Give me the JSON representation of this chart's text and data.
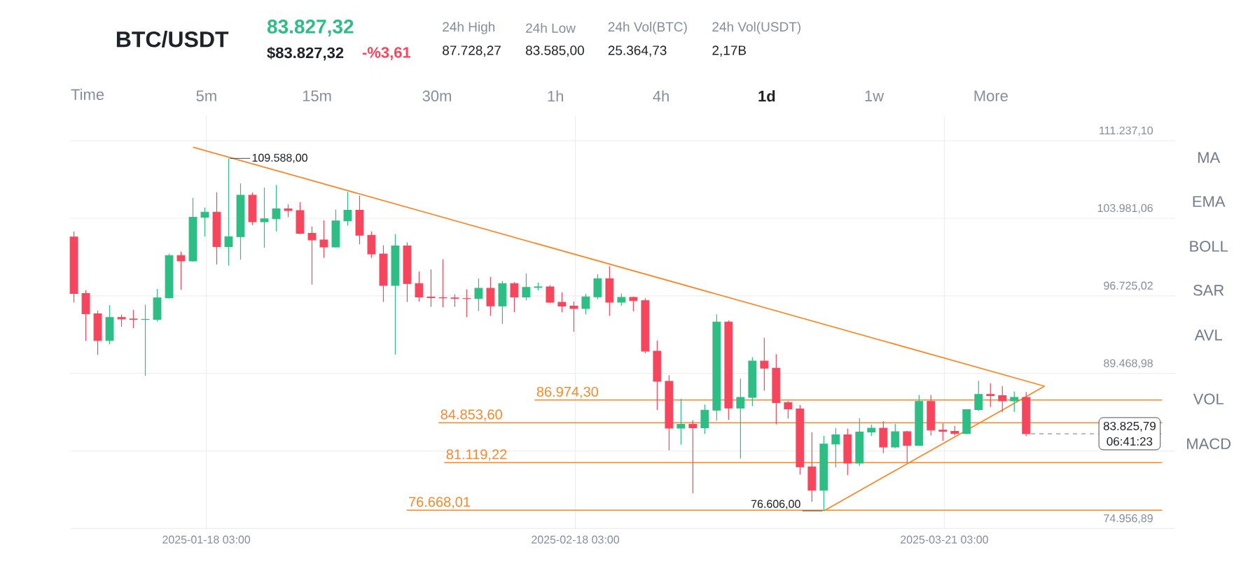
{
  "chart_data": {
    "type": "candlestick",
    "title": "BTC/USDT",
    "annotations": [
      "83.827,32",
      "$83.827,32",
      "-%3,61",
      "24h High",
      "87.728,27",
      "24h Low",
      "83.585,00",
      "24h Vol(BTC)",
      "25.364,73",
      "24h Vol(USDT)",
      "2,17B",
      "Time",
      "5m",
      "15m",
      "30m",
      "1h",
      "4h",
      "1d",
      "1w",
      "More",
      "MA",
      "EMA",
      "BOLL",
      "SAR",
      "AVL",
      "VOL",
      "MACD",
      "06:41:23",
      {
        "text": "109.588,00",
        "x": "2025-01-20",
        "y": 109588
      },
      {
        "text": "76.606,00",
        "x": "2025-03-11",
        "y": 76606
      }
    ],
    "x": [
      "2025-01-07",
      "2025-01-08",
      "2025-01-09",
      "2025-01-10",
      "2025-01-11",
      "2025-01-12",
      "2025-01-13",
      "2025-01-14",
      "2025-01-15",
      "2025-01-16",
      "2025-01-17",
      "2025-01-18",
      "2025-01-19",
      "2025-01-20",
      "2025-01-21",
      "2025-01-22",
      "2025-01-23",
      "2025-01-24",
      "2025-01-25",
      "2025-01-26",
      "2025-01-27",
      "2025-01-28",
      "2025-01-29",
      "2025-01-30",
      "2025-01-31",
      "2025-02-01",
      "2025-02-02",
      "2025-02-03",
      "2025-02-04",
      "2025-02-05",
      "2025-02-06",
      "2025-02-07",
      "2025-02-08",
      "2025-02-09",
      "2025-02-10",
      "2025-02-11",
      "2025-02-12",
      "2025-02-13",
      "2025-02-14",
      "2025-02-15",
      "2025-02-16",
      "2025-02-17",
      "2025-02-18",
      "2025-02-19",
      "2025-02-20",
      "2025-02-21",
      "2025-02-22",
      "2025-02-23",
      "2025-02-24",
      "2025-02-25",
      "2025-02-26",
      "2025-02-27",
      "2025-02-28",
      "2025-03-01",
      "2025-03-02",
      "2025-03-03",
      "2025-03-04",
      "2025-03-05",
      "2025-03-06",
      "2025-03-07",
      "2025-03-08",
      "2025-03-09",
      "2025-03-10",
      "2025-03-11",
      "2025-03-12",
      "2025-03-13",
      "2025-03-14",
      "2025-03-15",
      "2025-03-16",
      "2025-03-17",
      "2025-03-18",
      "2025-03-19",
      "2025-03-20",
      "2025-03-21",
      "2025-03-22",
      "2025-03-23",
      "2025-03-24",
      "2025-03-25",
      "2025-03-26",
      "2025-03-27",
      "2025-03-28"
    ],
    "ohlc": [
      [
        102230,
        102750,
        96100,
        96950
      ],
      [
        96950,
        97250,
        92500,
        95040
      ],
      [
        95040,
        95350,
        91200,
        92550
      ],
      [
        92550,
        95850,
        92200,
        94700
      ],
      [
        94700,
        94980,
        93830,
        94560
      ],
      [
        94560,
        95400,
        93700,
        94520
      ],
      [
        94520,
        95900,
        89250,
        94530
      ],
      [
        94530,
        97370,
        94320,
        96530
      ],
      [
        96530,
        100680,
        96470,
        100500
      ],
      [
        100500,
        100870,
        97300,
        99990
      ],
      [
        99990,
        105880,
        99940,
        104080
      ],
      [
        104080,
        104990,
        102270,
        104550
      ],
      [
        104550,
        106420,
        99650,
        101330
      ],
      [
        101330,
        109588,
        99550,
        102260
      ],
      [
        102260,
        107250,
        100120,
        106140
      ],
      [
        106140,
        106390,
        103340,
        103650
      ],
      [
        103650,
        106850,
        101220,
        103930
      ],
      [
        103930,
        107100,
        102750,
        104870
      ],
      [
        104870,
        105280,
        104100,
        104710
      ],
      [
        104710,
        105500,
        102500,
        102580
      ],
      [
        102580,
        103220,
        97780,
        101960
      ],
      [
        101960,
        103780,
        100280,
        101290
      ],
      [
        101290,
        104800,
        101260,
        103730
      ],
      [
        103730,
        106450,
        103300,
        104740
      ],
      [
        104740,
        106100,
        101540,
        102400
      ],
      [
        102400,
        102750,
        100280,
        100640
      ],
      [
        100640,
        101450,
        96150,
        97700
      ],
      [
        97700,
        102500,
        91230,
        101400
      ],
      [
        101400,
        101730,
        96150,
        97870
      ],
      [
        97870,
        99000,
        96200,
        96610
      ],
      [
        96610,
        99200,
        95700,
        96550
      ],
      [
        96550,
        100140,
        95650,
        96530
      ],
      [
        96530,
        96880,
        95700,
        96480
      ],
      [
        96480,
        97330,
        94730,
        96470
      ],
      [
        96470,
        98350,
        95300,
        97430
      ],
      [
        97430,
        98500,
        94850,
        95780
      ],
      [
        95780,
        98120,
        94090,
        97870
      ],
      [
        97870,
        98000,
        95200,
        96620
      ],
      [
        96620,
        98830,
        96300,
        97510
      ],
      [
        97510,
        97970,
        97240,
        97570
      ],
      [
        97570,
        97730,
        96050,
        96120
      ],
      [
        96120,
        97040,
        95200,
        95770
      ],
      [
        95770,
        96200,
        93380,
        95540
      ],
      [
        95540,
        96900,
        95000,
        96630
      ],
      [
        96630,
        98750,
        96400,
        98330
      ],
      [
        98330,
        99500,
        94870,
        96130
      ],
      [
        96130,
        96950,
        95800,
        96580
      ],
      [
        96580,
        96650,
        95280,
        96280
      ],
      [
        96280,
        96500,
        91350,
        91550
      ],
      [
        91550,
        92550,
        86050,
        88730
      ],
      [
        88730,
        89300,
        82260,
        84350
      ],
      [
        84350,
        87100,
        82800,
        84700
      ],
      [
        84700,
        85100,
        78260,
        84370
      ],
      [
        84370,
        86560,
        83800,
        86030
      ],
      [
        86030,
        95000,
        85050,
        94270
      ],
      [
        94270,
        94420,
        85120,
        86220
      ],
      [
        86220,
        88970,
        81500,
        87220
      ],
      [
        87220,
        90990,
        86400,
        90620
      ],
      [
        90620,
        92800,
        87850,
        89960
      ],
      [
        89960,
        91270,
        84700,
        86740
      ],
      [
        86740,
        86880,
        85250,
        86150
      ],
      [
        86150,
        86500,
        80000,
        80730
      ],
      [
        80730,
        83950,
        77460,
        78530
      ],
      [
        78530,
        83620,
        76606,
        82860
      ],
      [
        82860,
        84360,
        80670,
        83720
      ],
      [
        83720,
        84300,
        79940,
        81070
      ],
      [
        81070,
        85260,
        80800,
        83980
      ],
      [
        83980,
        84670,
        83630,
        84340
      ],
      [
        84340,
        85000,
        82000,
        82580
      ],
      [
        82580,
        84750,
        82470,
        84010
      ],
      [
        84010,
        84100,
        81130,
        82720
      ],
      [
        82720,
        87450,
        82700,
        86850
      ],
      [
        86850,
        87450,
        83650,
        84170
      ],
      [
        84170,
        84780,
        83170,
        84040
      ],
      [
        84040,
        84560,
        83650,
        83830
      ],
      [
        83830,
        86100,
        83780,
        86080
      ],
      [
        86080,
        88770,
        85940,
        87500
      ],
      [
        87500,
        88540,
        86330,
        87390
      ],
      [
        87390,
        88290,
        85850,
        86900
      ],
      [
        86900,
        87780,
        85860,
        87230
      ],
      [
        87230,
        87730,
        83585,
        83827
      ]
    ],
    "series": [
      {
        "type": "line",
        "color": "#f7892b",
        "x": [
          "2025-01-17",
          "2025-03-29T13:00"
        ],
        "values": [
          110640,
          88270
        ]
      },
      {
        "type": "line",
        "color": "#f7892b",
        "x": [
          "2025-03-11",
          "2025-03-29T13:00"
        ],
        "values": [
          76606,
          88270
        ]
      }
    ],
    "ref_lines": [
      {
        "axis": "y",
        "value": 86974.3,
        "label": "86.974,30",
        "color": "#f7892b"
      },
      {
        "axis": "y",
        "value": 84853.6,
        "label": "84.853,60",
        "color": "#f7892b"
      },
      {
        "axis": "y",
        "value": 81119.22,
        "label": "81.119,22",
        "color": "#f7892b"
      },
      {
        "axis": "y",
        "value": 76668.01,
        "label": "76.668,01",
        "color": "#f7892b"
      },
      {
        "axis": "y",
        "value": 83825.79,
        "label": "83.825,79",
        "color": "#707a8a",
        "line_style": "dashed"
      }
    ],
    "xlim": [
      "2025-01-06T17:00",
      "2025-04-09T12:00"
    ],
    "ylim": [
      74880,
      113560
    ],
    "xticks": [
      {
        "value": "2025-01-18T03:00",
        "label": "2025-01-18 03:00"
      },
      {
        "value": "2025-02-18T03:00",
        "label": "2025-02-18 03:00"
      },
      {
        "value": "2025-03-21T03:00",
        "label": "2025-03-21 03:00"
      }
    ],
    "yticks": [
      {
        "value": 74956.89,
        "label": "74.956,89"
      },
      {
        "value": 82212.94,
        "label": null
      },
      {
        "value": 89468.98,
        "label": "89.468,98"
      },
      {
        "value": 96725.02,
        "label": "96.725,02"
      },
      {
        "value": 103981.06,
        "label": "103.981,06"
      },
      {
        "value": 111237.1,
        "label": "111.237,10"
      }
    ],
    "grid": true
  }
}
